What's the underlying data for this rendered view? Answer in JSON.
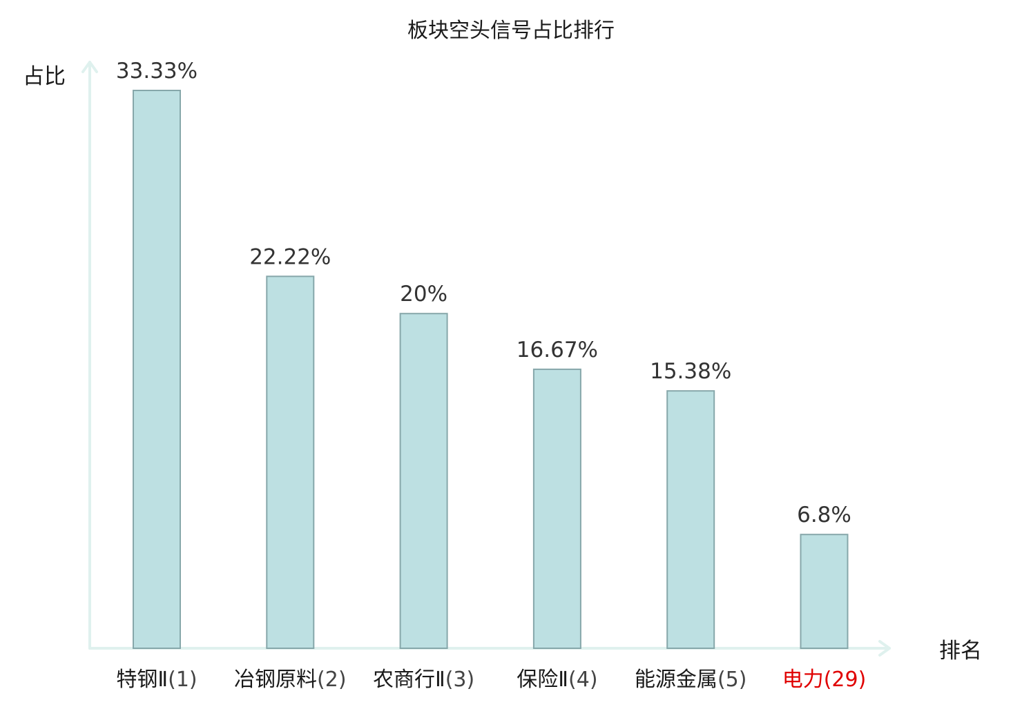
{
  "chart_data": {
    "type": "bar",
    "title": "板块空头信号占比排行",
    "xlabel": "排名",
    "ylabel": "占比",
    "value_suffix": "%",
    "categories": [
      {
        "name": "特钢Ⅱ",
        "rank": "(1)",
        "highlight": false
      },
      {
        "name": "冶钢原料",
        "rank": "(2)",
        "highlight": false
      },
      {
        "name": "农商行Ⅱ",
        "rank": "(3)",
        "highlight": false
      },
      {
        "name": "保险Ⅱ",
        "rank": "(4)",
        "highlight": false
      },
      {
        "name": "能源金属",
        "rank": "(5)",
        "highlight": false
      },
      {
        "name": "电力",
        "rank": "(29)",
        "highlight": true
      }
    ],
    "values": [
      33.33,
      22.22,
      20,
      16.67,
      15.38,
      6.8
    ],
    "value_labels": [
      "33.33%",
      "22.22%",
      "20%",
      "16.67%",
      "15.38%",
      "6.8%"
    ],
    "ylim": [
      0,
      33.33
    ],
    "grid": false,
    "legend": "none"
  },
  "colors": {
    "bar_fill": "#bde0e2",
    "bar_stroke": "#86a7aa",
    "axis": "#dff1ee",
    "highlight": "#e00000",
    "text": "#1a1a1a",
    "value_text": "#333333"
  }
}
